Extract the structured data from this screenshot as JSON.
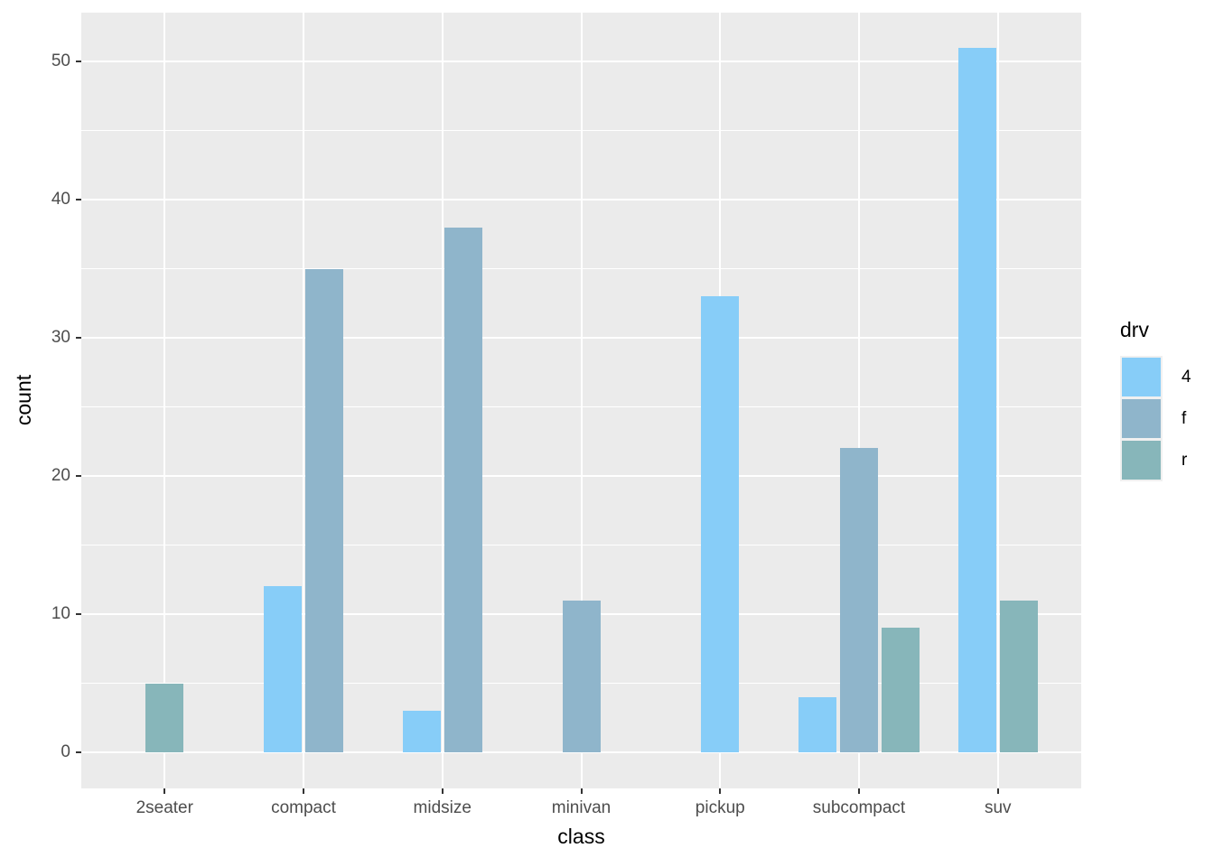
{
  "figure": {
    "xlabel": "class",
    "ylabel": "count",
    "legend_title": "drv"
  },
  "chart_data": {
    "type": "bar",
    "layout": "dodged",
    "title": "",
    "xlabel": "class",
    "ylabel": "count",
    "categories": [
      "2seater",
      "compact",
      "midsize",
      "minivan",
      "pickup",
      "subcompact",
      "suv"
    ],
    "series": [
      {
        "name": "4",
        "color": "#87CDF8",
        "values": [
          null,
          12,
          3,
          null,
          33,
          4,
          51
        ]
      },
      {
        "name": "f",
        "color": "#8FB5CB",
        "values": [
          null,
          35,
          38,
          11,
          null,
          22,
          null
        ]
      },
      {
        "name": "r",
        "color": "#87B6BA",
        "values": [
          5,
          null,
          null,
          null,
          null,
          9,
          11
        ]
      }
    ],
    "y_major_ticks": [
      0,
      10,
      20,
      30,
      40,
      50
    ],
    "y_minor_ticks": [
      5,
      15,
      25,
      35,
      45
    ],
    "ylim": [
      0,
      51
    ],
    "grid": true,
    "legend_title": "drv",
    "legend_position": "right",
    "legend_entries": [
      "4",
      "f",
      "r"
    ],
    "colors": {
      "panel_bg": "#EBEBEB",
      "grid": "#FFFFFF",
      "tick_mark": "#333333",
      "tick_label": "#4D4D4D",
      "axis_title": "#000000",
      "legend_key_frame": "#F0F0F0"
    }
  }
}
